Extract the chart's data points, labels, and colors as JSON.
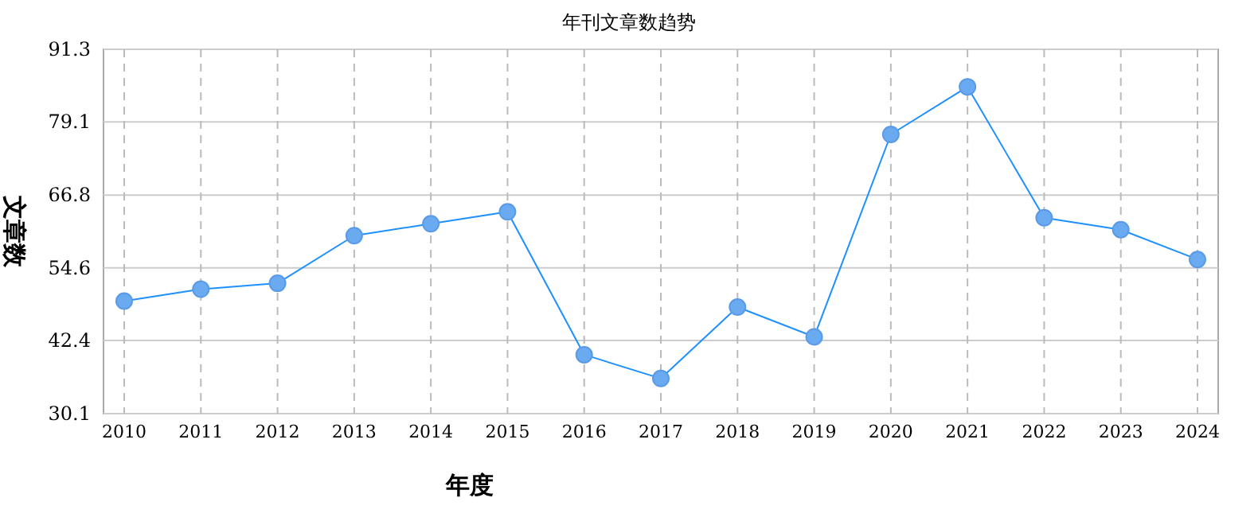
{
  "chart_data": {
    "type": "line",
    "title": "年刊文章数趋势",
    "xlabel": "年度",
    "ylabel": "文章数",
    "categories": [
      "2010",
      "2011",
      "2012",
      "2013",
      "2014",
      "2015",
      "2016",
      "2017",
      "2018",
      "2019",
      "2020",
      "2021",
      "2022",
      "2023",
      "2024"
    ],
    "series": [
      {
        "color": "#1e90ff",
        "values": [
          49,
          51,
          52,
          60,
          62,
          64,
          40,
          36,
          48,
          43,
          77,
          85,
          63,
          61,
          56
        ]
      }
    ],
    "ylim": [
      30.1,
      91.3
    ],
    "yticks": [
      30.1,
      42.4,
      54.6,
      66.8,
      79.1,
      91.3
    ],
    "grid": true,
    "marker": "circle",
    "line_style": "solid"
  }
}
